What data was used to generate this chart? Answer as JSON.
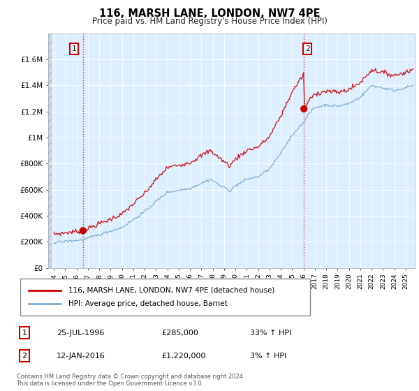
{
  "title": "116, MARSH LANE, LONDON, NW7 4PE",
  "subtitle": "Price paid vs. HM Land Registry's House Price Index (HPI)",
  "sale1_date_num": 1996.56,
  "sale1_price": 285000,
  "sale1_label": "1",
  "sale2_date_num": 2016.03,
  "sale2_price": 1220000,
  "sale2_label": "2",
  "legend_label_red": "116, MARSH LANE, LONDON, NW7 4PE (detached house)",
  "legend_label_blue": "HPI: Average price, detached house, Barnet",
  "footer": "Contains HM Land Registry data © Crown copyright and database right 2024.\nThis data is licensed under the Open Government Licence v3.0.",
  "color_red": "#cc0000",
  "color_blue": "#7aadd4",
  "color_bg": "#ddeeff",
  "ylim": [
    0,
    1800000
  ],
  "plot_ylim_top": 1620000,
  "xlim_left": 1993.5,
  "xlim_right": 2025.8,
  "yticks": [
    0,
    200000,
    400000,
    600000,
    800000,
    1000000,
    1200000,
    1400000,
    1600000
  ],
  "ytick_labels": [
    "£0",
    "£200K",
    "£400K",
    "£600K",
    "£800K",
    "£1M",
    "£1.2M",
    "£1.4M",
    "£1.6M"
  ],
  "xticks": [
    1994,
    1995,
    1996,
    1997,
    1998,
    1999,
    2000,
    2001,
    2002,
    2003,
    2004,
    2005,
    2006,
    2007,
    2008,
    2009,
    2010,
    2011,
    2012,
    2013,
    2014,
    2015,
    2016,
    2017,
    2018,
    2019,
    2020,
    2021,
    2022,
    2023,
    2024,
    2025
  ],
  "row1_date": "25-JUL-1996",
  "row1_price": "£285,000",
  "row1_hpi": "33% ↑ HPI",
  "row2_date": "12-JAN-2016",
  "row2_price": "£1,220,000",
  "row2_hpi": "3% ↑ HPI"
}
